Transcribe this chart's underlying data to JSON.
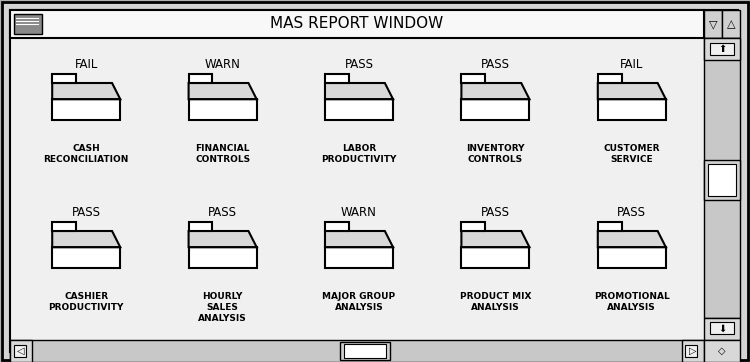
{
  "title": "MAS REPORT WINDOW",
  "items": [
    {
      "status": "FAIL",
      "label": "CASH\nRECONCILIATION",
      "col": 0,
      "row": 0
    },
    {
      "status": "WARN",
      "label": "FINANCIAL\nCONTROLS",
      "col": 1,
      "row": 0
    },
    {
      "status": "PASS",
      "label": "LABOR\nPRODUCTIVITY",
      "col": 2,
      "row": 0
    },
    {
      "status": "PASS",
      "label": "INVENTORY\nCONTROLS",
      "col": 3,
      "row": 0
    },
    {
      "status": "FAIL",
      "label": "CUSTOMER\nSERVICE",
      "col": 4,
      "row": 0
    },
    {
      "status": "PASS",
      "label": "CASHIER\nPRODUCTIVITY",
      "col": 0,
      "row": 1
    },
    {
      "status": "PASS",
      "label": "HOURLY\nSALES\nANALYSIS",
      "col": 1,
      "row": 1
    },
    {
      "status": "WARN",
      "label": "MAJOR GROUP\nANALYSIS",
      "col": 2,
      "row": 1
    },
    {
      "status": "PASS",
      "label": "PRODUCT MIX\nANALYSIS",
      "col": 3,
      "row": 1
    },
    {
      "status": "PASS",
      "label": "PROMOTIONAL\nANALYSIS",
      "col": 4,
      "row": 1
    }
  ],
  "n_cols": 5,
  "n_rows": 2
}
